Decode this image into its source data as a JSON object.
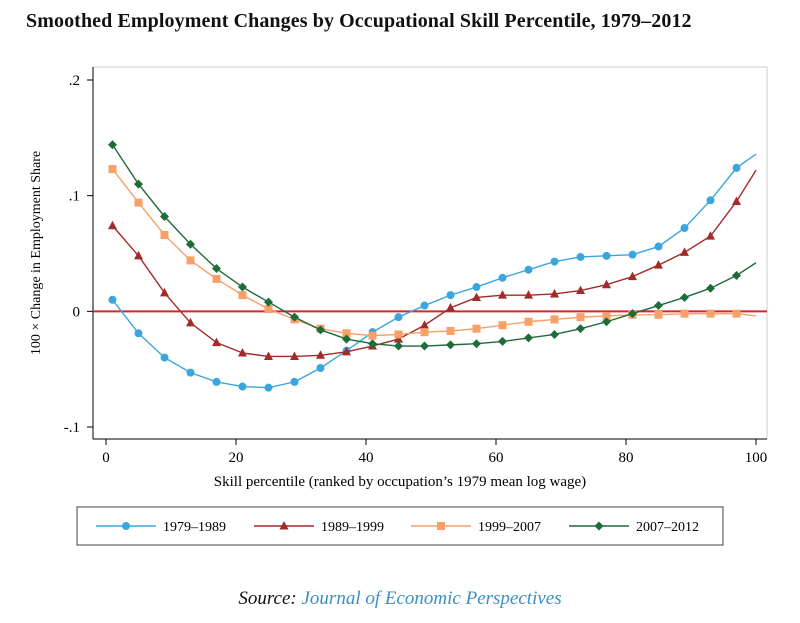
{
  "chart_data": {
    "type": "line",
    "title": "Smoothed Employment Changes by Occupational Skill Percentile, 1979–2012",
    "xlabel": "Skill percentile (ranked by occupation’s 1979 mean log wage)",
    "ylabel": "100 × Change in Employment Share",
    "xlim": [
      0,
      100
    ],
    "ylim": [
      -0.1,
      0.2
    ],
    "x_ticks": [
      0,
      20,
      40,
      60,
      80,
      100
    ],
    "x_tick_labels": [
      "0",
      "20",
      "40",
      "60",
      "80",
      "100"
    ],
    "y_ticks": [
      -0.1,
      0,
      0.1,
      0.2
    ],
    "y_tick_labels": [
      "-.1",
      "0",
      ".1",
      ".2"
    ],
    "reference_line": {
      "y": 0,
      "color": "#d62728"
    },
    "grid": false,
    "legend_position": "bottom",
    "x": [
      1,
      5,
      9,
      13,
      17,
      21,
      25,
      29,
      33,
      37,
      41,
      45,
      49,
      53,
      57,
      61,
      65,
      69,
      73,
      77,
      81,
      85,
      89,
      93,
      97
    ],
    "series": [
      {
        "name": "1979–1989",
        "color": "#3aa6dd",
        "marker": "circle",
        "values": [
          0.01,
          -0.019,
          -0.04,
          -0.053,
          -0.061,
          -0.065,
          -0.066,
          -0.061,
          -0.049,
          -0.034,
          -0.018,
          -0.005,
          0.005,
          0.014,
          0.021,
          0.029,
          0.036,
          0.043,
          0.047,
          0.048,
          0.049,
          0.056,
          0.072,
          0.096,
          0.124
        ],
        "end": [
          100,
          0.136
        ]
      },
      {
        "name": "1989–1999",
        "color": "#a32a2a",
        "marker": "triangle",
        "values": [
          0.074,
          0.048,
          0.016,
          -0.01,
          -0.027,
          -0.036,
          -0.039,
          -0.039,
          -0.038,
          -0.035,
          -0.03,
          -0.024,
          -0.012,
          0.003,
          0.012,
          0.014,
          0.014,
          0.015,
          0.018,
          0.023,
          0.03,
          0.04,
          0.051,
          0.065,
          0.095
        ],
        "end": [
          100,
          0.122
        ]
      },
      {
        "name": "1999–2007",
        "color": "#f8a068",
        "marker": "square",
        "values": [
          0.123,
          0.094,
          0.066,
          0.044,
          0.028,
          0.014,
          0.002,
          -0.007,
          -0.015,
          -0.019,
          -0.021,
          -0.02,
          -0.018,
          -0.017,
          -0.015,
          -0.012,
          -0.009,
          -0.007,
          -0.005,
          -0.004,
          -0.003,
          -0.003,
          -0.002,
          -0.002,
          -0.002
        ],
        "end": [
          100,
          -0.004
        ]
      },
      {
        "name": "2007–2012",
        "color": "#1f6b3a",
        "marker": "diamond",
        "values": [
          0.144,
          0.11,
          0.082,
          0.058,
          0.037,
          0.021,
          0.008,
          -0.005,
          -0.016,
          -0.024,
          -0.028,
          -0.03,
          -0.03,
          -0.029,
          -0.028,
          -0.026,
          -0.023,
          -0.02,
          -0.015,
          -0.009,
          -0.002,
          0.005,
          0.012,
          0.02,
          0.031
        ],
        "end": [
          100,
          0.042
        ]
      }
    ]
  },
  "source": {
    "prefix": "Source:",
    "publication": "Journal of Economic Perspectives"
  }
}
